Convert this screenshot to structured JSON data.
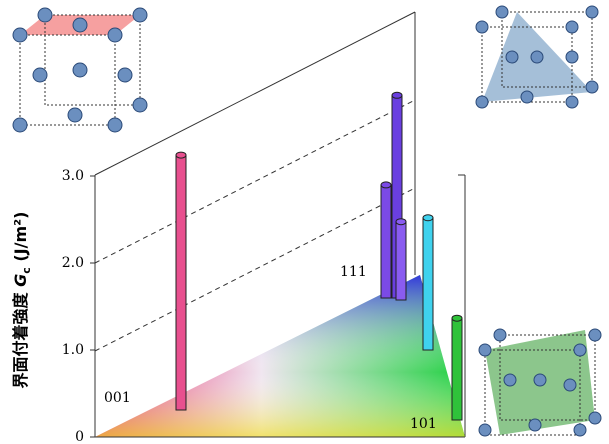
{
  "chart_data": {
    "type": "bar3d",
    "ylabel": "界面付着強度",
    "ylabel_symbol": "G",
    "ylabel_subscript": "c",
    "ylabel_unit": "(J/m²)",
    "corner_labels": [
      "001",
      "111",
      "101"
    ],
    "series": [
      {
        "color": "#e8508f",
        "values": [
          2.93
        ]
      },
      {
        "color": "#6a3fe0",
        "values": [
          2.33
        ]
      },
      {
        "color": "#7b4ae6",
        "values": [
          1.3
        ]
      },
      {
        "color": "#8a5cf0",
        "values": [
          0.9
        ]
      },
      {
        "color": "#3fd2ee",
        "values": [
          1.52
        ]
      },
      {
        "color": "#2fc23a",
        "values": [
          1.17
        ]
      }
    ],
    "ylim": [
      0,
      3.0
    ],
    "yticks": [
      0,
      {
        "value": 1,
        "label": "1.0"
      },
      {
        "value": 2,
        "label": "2.0"
      },
      {
        "value": 3,
        "label": "3.0"
      }
    ]
  }
}
